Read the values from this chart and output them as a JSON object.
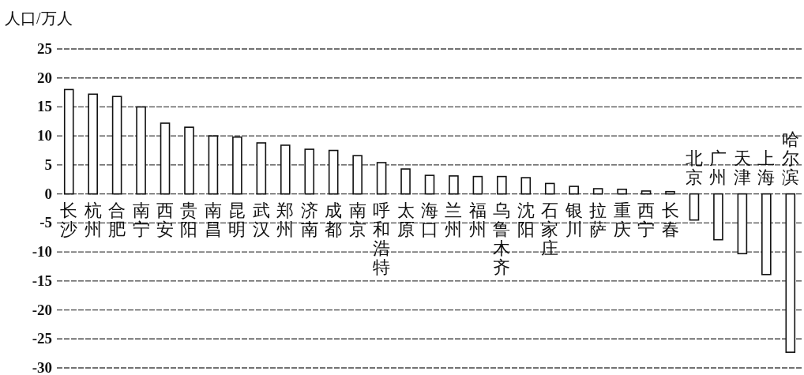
{
  "chart_data": {
    "type": "bar",
    "ylabel": "人口/万人",
    "categories": [
      "长沙",
      "杭州",
      "合肥",
      "南宁",
      "西安",
      "贵阳",
      "南昌",
      "昆明",
      "武汉",
      "郑州",
      "济南",
      "成都",
      "南京",
      "呼和浩特",
      "太原",
      "海口",
      "兰州",
      "福州",
      "乌鲁木齐",
      "沈阳",
      "石家庄",
      "银川",
      "拉萨",
      "重庆",
      "西宁",
      "长春",
      "北京",
      "广州",
      "天津",
      "上海",
      "哈尔滨"
    ],
    "values": [
      18.0,
      17.2,
      16.8,
      15.0,
      12.2,
      11.5,
      10.0,
      9.8,
      8.8,
      8.4,
      7.7,
      7.5,
      6.6,
      5.4,
      4.3,
      3.2,
      3.1,
      3.0,
      3.0,
      2.8,
      1.8,
      1.3,
      0.9,
      0.8,
      0.5,
      0.4,
      -4.5,
      -7.9,
      -10.3,
      -13.9,
      -27.3
    ],
    "color": "#ffffff",
    "ylim": [
      -30,
      25
    ],
    "yticks": [
      -30,
      -25,
      -20,
      -15,
      -10,
      -5,
      0,
      5,
      10,
      15,
      20,
      25
    ],
    "grid": "y"
  }
}
